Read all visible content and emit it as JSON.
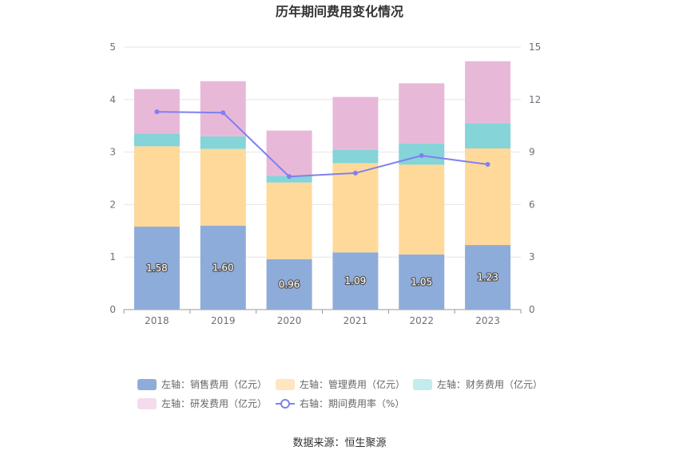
{
  "chart_data": {
    "type": "bar",
    "title": "历年期间费用变化情况",
    "categories": [
      "2018",
      "2019",
      "2020",
      "2021",
      "2022",
      "2023"
    ],
    "left_axis": {
      "min": 0,
      "max": 5,
      "ticks": [
        "0",
        "1",
        "2",
        "3",
        "4",
        "5"
      ]
    },
    "right_axis": {
      "min": 0,
      "max": 15,
      "ticks": [
        "0",
        "3",
        "6",
        "9",
        "12",
        "15"
      ]
    },
    "series": [
      {
        "name": "左轴：销售费用（亿元）",
        "type": "bar",
        "stack": "total",
        "axis": "left",
        "color": "#8eacd9",
        "values": [
          1.58,
          1.6,
          0.96,
          1.09,
          1.05,
          1.23
        ],
        "labels": [
          "1.58",
          "1.60",
          "0.96",
          "1.09",
          "1.05",
          "1.23"
        ]
      },
      {
        "name": "左轴：管理费用（亿元）",
        "type": "bar",
        "stack": "total",
        "axis": "left",
        "color": "#ffd999",
        "values": [
          1.53,
          1.46,
          1.46,
          1.7,
          1.71,
          1.84
        ]
      },
      {
        "name": "左轴：财务费用（亿元）",
        "type": "bar",
        "stack": "total",
        "axis": "left",
        "color": "#84d4d8",
        "values": [
          0.24,
          0.24,
          0.13,
          0.25,
          0.4,
          0.48
        ]
      },
      {
        "name": "左轴：研发费用（亿元）",
        "type": "bar",
        "stack": "total",
        "axis": "left",
        "color": "#e8b8d9",
        "values": [
          0.85,
          1.05,
          0.86,
          1.01,
          1.15,
          1.18
        ]
      },
      {
        "name": "右轴：期间费用率（%）",
        "type": "line",
        "axis": "right",
        "color": "#8080ee",
        "values": [
          11.3,
          11.25,
          7.6,
          7.8,
          8.8,
          8.3
        ]
      }
    ],
    "legend_colors": [
      "#8eacd9",
      "#ffe6c0",
      "#c2ecee",
      "#f4dcec",
      "#8080ee"
    ],
    "grid": true,
    "legend_position": "bottom"
  },
  "footer": {
    "source": "数据来源：恒生聚源"
  }
}
